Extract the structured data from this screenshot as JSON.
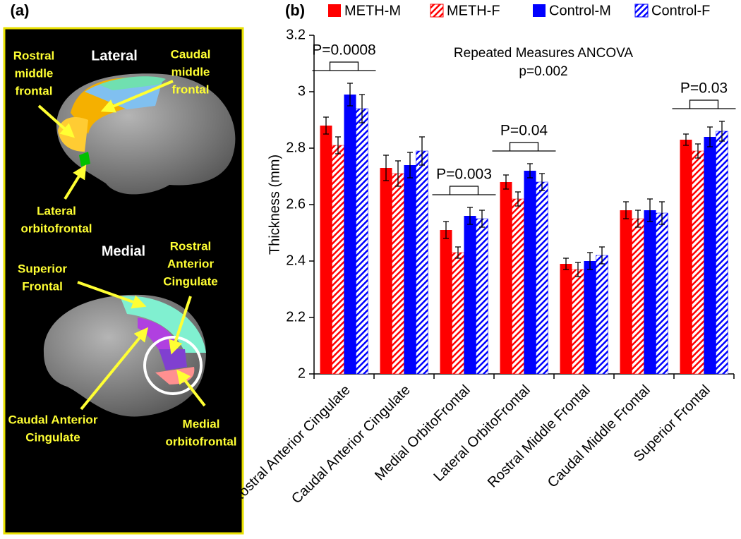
{
  "panel_a": {
    "label": "(a)",
    "views": [
      "Lateral",
      "Medial"
    ],
    "regions": [
      {
        "lines": [
          "Rostral",
          "middle",
          "frontal"
        ]
      },
      {
        "lines": [
          "Caudal",
          "middle",
          "frontal"
        ]
      },
      {
        "lines": [
          "Lateral",
          "orbitofrontal"
        ]
      },
      {
        "lines": [
          "Rostral",
          "Anterior",
          "Cingulate"
        ]
      },
      {
        "lines": [
          "Superior",
          "Frontal"
        ]
      },
      {
        "lines": [
          "Caudal Anterior",
          "Cingulate"
        ]
      },
      {
        "lines": [
          "Medial",
          "orbitofrontal"
        ]
      }
    ]
  },
  "chart_data": {
    "type": "bar",
    "panel_label": "(b)",
    "y_label": "Thickness (mm)",
    "annotation": [
      "Repeated Measures ANCOVA",
      "p=0.002"
    ],
    "categories": [
      "Rostral Anterior Cingulate",
      "Caudal Anterior Cingulate",
      "Medial OrbitoFrontal",
      "Lateral OrbitoFrontal",
      "Rostral Middle Frontal",
      "Caudal Middle Frontal",
      "Superior Frontal"
    ],
    "p_values": [
      "P=0.0008",
      null,
      "P=0.003",
      "P=0.04",
      null,
      null,
      "P=0.03"
    ],
    "series": [
      {
        "name": "METH-M",
        "color": "#ff0000",
        "hatch": false,
        "values": [
          2.88,
          2.73,
          2.51,
          2.68,
          2.39,
          2.58,
          2.83
        ],
        "errors": [
          0.03,
          0.045,
          0.03,
          0.025,
          0.02,
          0.03,
          0.02
        ]
      },
      {
        "name": "METH-F",
        "color": "#ff0000",
        "hatch": true,
        "values": [
          2.81,
          2.71,
          2.43,
          2.62,
          2.37,
          2.55,
          2.79
        ],
        "errors": [
          0.03,
          0.045,
          0.02,
          0.025,
          0.025,
          0.03,
          0.025
        ]
      },
      {
        "name": "Control-M",
        "color": "#0000ff",
        "hatch": false,
        "values": [
          2.99,
          2.74,
          2.56,
          2.72,
          2.4,
          2.58,
          2.84
        ],
        "errors": [
          0.04,
          0.045,
          0.03,
          0.025,
          0.03,
          0.04,
          0.035
        ]
      },
      {
        "name": "Control-F",
        "color": "#0000ff",
        "hatch": true,
        "values": [
          2.94,
          2.79,
          2.55,
          2.68,
          2.42,
          2.57,
          2.86
        ],
        "errors": [
          0.05,
          0.05,
          0.03,
          0.03,
          0.03,
          0.04,
          0.035
        ]
      }
    ],
    "ylim": [
      2,
      3.2
    ],
    "yticks": [
      2,
      2.2,
      2.4,
      2.6,
      2.8,
      3,
      3.2
    ],
    "legend": "top"
  }
}
